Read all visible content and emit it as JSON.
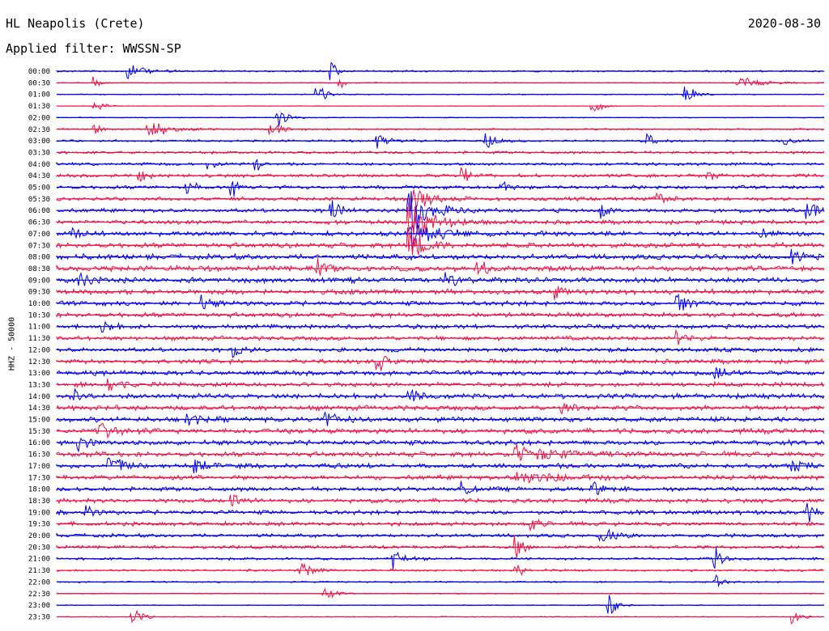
{
  "header": {
    "station": "HL Neapolis (Crete)",
    "date": "2020-08-30",
    "filter": "Applied filter: WWSSN-SP"
  },
  "chart_data": {
    "type": "helicorder",
    "title": "HL Neapolis (Crete)",
    "date": "2020-08-30",
    "filter": "WWSSN-SP",
    "ylabel": "HHZ - 50000",
    "line_minutes": 30,
    "colors": [
      "#0000ee",
      "#ee1144"
    ],
    "rows": [
      "00:00",
      "00:30",
      "01:00",
      "01:30",
      "02:00",
      "02:30",
      "03:00",
      "03:30",
      "04:00",
      "04:30",
      "05:00",
      "05:30",
      "06:00",
      "06:30",
      "07:00",
      "07:30",
      "08:00",
      "08:30",
      "09:00",
      "09:30",
      "10:00",
      "10:30",
      "11:00",
      "11:30",
      "12:00",
      "12:30",
      "13:00",
      "13:30",
      "14:00",
      "14:30",
      "15:00",
      "15:30",
      "16:00",
      "16:30",
      "17:00",
      "17:30",
      "18:00",
      "18:30",
      "19:00",
      "19:30",
      "20:00",
      "20:30",
      "21:00",
      "21:30",
      "22:00",
      "22:30",
      "23:00",
      "23:30"
    ],
    "noise_level": [
      1,
      0.5,
      0.6,
      0.3,
      0.5,
      0.9,
      1.2,
      1.5,
      1.6,
      1.8,
      2,
      2,
      2.2,
      2.4,
      2.6,
      2.8,
      3,
      3,
      3,
      2.8,
      2.6,
      2.6,
      2.4,
      2.4,
      2.4,
      2.5,
      2.6,
      2.6,
      2.8,
      2.8,
      2.8,
      2.8,
      2.8,
      2.8,
      2.6,
      2.6,
      2.4,
      2.4,
      2.4,
      2.2,
      2,
      1.8,
      1.4,
      1.2,
      0.8,
      0.6,
      0.5,
      0.5
    ],
    "events": [
      {
        "row": 0,
        "t": 0.095,
        "amp": 14,
        "dur": 0.015
      },
      {
        "row": 0,
        "t": 0.36,
        "amp": 18,
        "dur": 0.005
      },
      {
        "row": 1,
        "t": 0.89,
        "amp": 10,
        "dur": 0.03
      },
      {
        "row": 1,
        "t": 0.05,
        "amp": 10,
        "dur": 0.005
      },
      {
        "row": 1,
        "t": 0.37,
        "amp": 12,
        "dur": 0.005
      },
      {
        "row": 2,
        "t": 0.34,
        "amp": 14,
        "dur": 0.012
      },
      {
        "row": 2,
        "t": 0.82,
        "amp": 16,
        "dur": 0.01
      },
      {
        "row": 3,
        "t": 0.05,
        "amp": 12,
        "dur": 0.01
      },
      {
        "row": 3,
        "t": 0.7,
        "amp": 12,
        "dur": 0.01
      },
      {
        "row": 4,
        "t": 0.29,
        "amp": 16,
        "dur": 0.01
      },
      {
        "row": 5,
        "t": 0.12,
        "amp": 13,
        "dur": 0.025
      },
      {
        "row": 5,
        "t": 0.28,
        "amp": 13,
        "dur": 0.012
      },
      {
        "row": 5,
        "t": 0.05,
        "amp": 8,
        "dur": 0.008
      },
      {
        "row": 6,
        "t": 0.42,
        "amp": 14,
        "dur": 0.008
      },
      {
        "row": 6,
        "t": 0.56,
        "amp": 14,
        "dur": 0.01
      },
      {
        "row": 6,
        "t": 0.77,
        "amp": 12,
        "dur": 0.01
      },
      {
        "row": 6,
        "t": 0.95,
        "amp": 10,
        "dur": 0.008
      },
      {
        "row": 8,
        "t": 0.2,
        "amp": 12,
        "dur": 0.008
      },
      {
        "row": 8,
        "t": 0.26,
        "amp": 12,
        "dur": 0.006
      },
      {
        "row": 9,
        "t": 0.11,
        "amp": 9,
        "dur": 0.008
      },
      {
        "row": 9,
        "t": 0.53,
        "amp": 12,
        "dur": 0.01
      },
      {
        "row": 9,
        "t": 0.85,
        "amp": 9,
        "dur": 0.01
      },
      {
        "row": 10,
        "t": 0.17,
        "amp": 12,
        "dur": 0.008
      },
      {
        "row": 10,
        "t": 0.23,
        "amp": 12,
        "dur": 0.008
      },
      {
        "row": 10,
        "t": 0.58,
        "amp": 10,
        "dur": 0.008
      },
      {
        "row": 11,
        "t": 0.46,
        "amp": 28,
        "dur": 0.02
      },
      {
        "row": 11,
        "t": 0.78,
        "amp": 12,
        "dur": 0.01
      },
      {
        "row": 12,
        "t": 0.36,
        "amp": 16,
        "dur": 0.01
      },
      {
        "row": 12,
        "t": 0.46,
        "amp": 32,
        "dur": 0.025
      },
      {
        "row": 12,
        "t": 0.71,
        "amp": 14,
        "dur": 0.01
      },
      {
        "row": 12,
        "t": 0.98,
        "amp": 14,
        "dur": 0.01
      },
      {
        "row": 13,
        "t": 0.46,
        "amp": 30,
        "dur": 0.03
      },
      {
        "row": 14,
        "t": 0.46,
        "amp": 22,
        "dur": 0.03
      },
      {
        "row": 14,
        "t": 0.02,
        "amp": 10,
        "dur": 0.01
      },
      {
        "row": 14,
        "t": 0.92,
        "amp": 10,
        "dur": 0.01
      },
      {
        "row": 15,
        "t": 0.46,
        "amp": 24,
        "dur": 0.02
      },
      {
        "row": 16,
        "t": 0.96,
        "amp": 12,
        "dur": 0.01
      },
      {
        "row": 17,
        "t": 0.34,
        "amp": 14,
        "dur": 0.01
      },
      {
        "row": 17,
        "t": 0.55,
        "amp": 12,
        "dur": 0.01
      },
      {
        "row": 18,
        "t": 0.03,
        "amp": 12,
        "dur": 0.012
      },
      {
        "row": 18,
        "t": 0.51,
        "amp": 12,
        "dur": 0.01
      },
      {
        "row": 19,
        "t": 0.65,
        "amp": 12,
        "dur": 0.01
      },
      {
        "row": 20,
        "t": 0.19,
        "amp": 14,
        "dur": 0.01
      },
      {
        "row": 20,
        "t": 0.81,
        "amp": 16,
        "dur": 0.012
      },
      {
        "row": 22,
        "t": 0.06,
        "amp": 12,
        "dur": 0.01
      },
      {
        "row": 23,
        "t": 0.81,
        "amp": 12,
        "dur": 0.01
      },
      {
        "row": 24,
        "t": 0.23,
        "amp": 13,
        "dur": 0.01
      },
      {
        "row": 25,
        "t": 0.42,
        "amp": 14,
        "dur": 0.01
      },
      {
        "row": 26,
        "t": 0.86,
        "amp": 12,
        "dur": 0.01
      },
      {
        "row": 27,
        "t": 0.07,
        "amp": 12,
        "dur": 0.01
      },
      {
        "row": 28,
        "t": 0.02,
        "amp": 12,
        "dur": 0.01
      },
      {
        "row": 28,
        "t": 0.46,
        "amp": 12,
        "dur": 0.012
      },
      {
        "row": 29,
        "t": 0.66,
        "amp": 10,
        "dur": 0.01
      },
      {
        "row": 30,
        "t": 0.17,
        "amp": 14,
        "dur": 0.012
      },
      {
        "row": 30,
        "t": 0.35,
        "amp": 14,
        "dur": 0.012
      },
      {
        "row": 31,
        "t": 0.05,
        "amp": 16,
        "dur": 0.02
      },
      {
        "row": 32,
        "t": 0.03,
        "amp": 12,
        "dur": 0.012
      },
      {
        "row": 33,
        "t": 0.6,
        "amp": 12,
        "dur": 0.05
      },
      {
        "row": 34,
        "t": 0.07,
        "amp": 14,
        "dur": 0.02
      },
      {
        "row": 34,
        "t": 0.18,
        "amp": 12,
        "dur": 0.012
      },
      {
        "row": 34,
        "t": 0.96,
        "amp": 12,
        "dur": 0.01
      },
      {
        "row": 35,
        "t": 0.6,
        "amp": 8,
        "dur": 0.06
      },
      {
        "row": 36,
        "t": 0.53,
        "amp": 12,
        "dur": 0.008
      },
      {
        "row": 36,
        "t": 0.7,
        "amp": 12,
        "dur": 0.01
      },
      {
        "row": 37,
        "t": 0.23,
        "amp": 12,
        "dur": 0.01
      },
      {
        "row": 38,
        "t": 0.98,
        "amp": 16,
        "dur": 0.01
      },
      {
        "row": 38,
        "t": 0.04,
        "amp": 12,
        "dur": 0.008
      },
      {
        "row": 39,
        "t": 0.62,
        "amp": 12,
        "dur": 0.008
      },
      {
        "row": 40,
        "t": 0.71,
        "amp": 12,
        "dur": 0.015
      },
      {
        "row": 41,
        "t": 0.6,
        "amp": 16,
        "dur": 0.008
      },
      {
        "row": 42,
        "t": 0.44,
        "amp": 14,
        "dur": 0.012
      },
      {
        "row": 42,
        "t": 0.86,
        "amp": 14,
        "dur": 0.008
      },
      {
        "row": 43,
        "t": 0.32,
        "amp": 14,
        "dur": 0.012
      },
      {
        "row": 43,
        "t": 0.6,
        "amp": 12,
        "dur": 0.008
      },
      {
        "row": 44,
        "t": 0.86,
        "amp": 12,
        "dur": 0.008
      },
      {
        "row": 45,
        "t": 0.35,
        "amp": 12,
        "dur": 0.01
      },
      {
        "row": 46,
        "t": 0.72,
        "amp": 22,
        "dur": 0.008
      },
      {
        "row": 47,
        "t": 0.1,
        "amp": 14,
        "dur": 0.01
      },
      {
        "row": 47,
        "t": 0.96,
        "amp": 14,
        "dur": 0.01
      }
    ]
  }
}
